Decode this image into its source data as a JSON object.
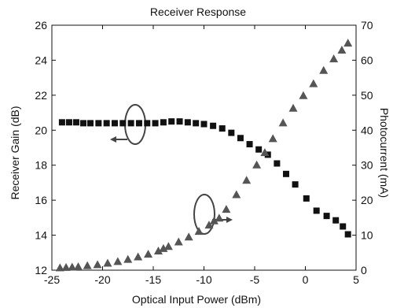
{
  "chart_data": {
    "type": "scatter",
    "title": "Receiver Response",
    "xlabel": "Optical Input Power (dBm)",
    "ylabel_left": "Receiver Gain (dB)",
    "ylabel_right": "Photocurrent (mA)",
    "xlim": [
      -25,
      5
    ],
    "ylim_left": [
      12,
      26
    ],
    "ylim_right": [
      0,
      70
    ],
    "x_ticks": [
      "-25",
      "-20",
      "-15",
      "-10",
      "-5",
      "0",
      "5"
    ],
    "y_left_ticks": [
      "12",
      "14",
      "16",
      "18",
      "20",
      "22",
      "24",
      "26"
    ],
    "y_right_ticks": [
      "0",
      "10",
      "20",
      "30",
      "40",
      "50",
      "60",
      "70"
    ],
    "grid": false,
    "colors": {
      "gain": "#111111",
      "photocurrent": "#555555",
      "annotation": "#444444"
    },
    "series": [
      {
        "axis": "left",
        "marker": "square",
        "x": [
          -24,
          -23.3,
          -22.6,
          -21.9,
          -21.2,
          -20.4,
          -19.6,
          -18.8,
          -18,
          -17.2,
          -16.4,
          -15.6,
          -14.8,
          -14,
          -13.2,
          -12.4,
          -11.6,
          -10.8,
          -10,
          -9.1,
          -8.2,
          -7.3,
          -6.4,
          -5.5,
          -4.6,
          -3.7,
          -2.8,
          -1.9,
          -1,
          0.1,
          1.1,
          2.1,
          3,
          3.7,
          4.2
        ],
        "values": [
          20.45,
          20.45,
          20.45,
          20.4,
          20.4,
          20.4,
          20.4,
          20.4,
          20.4,
          20.4,
          20.4,
          20.4,
          20.4,
          20.45,
          20.5,
          20.5,
          20.45,
          20.4,
          20.35,
          20.25,
          20.1,
          19.85,
          19.55,
          19.2,
          18.9,
          18.6,
          18.1,
          17.5,
          16.9,
          16.1,
          15.4,
          15.1,
          14.85,
          14.5,
          14.05
        ]
      },
      {
        "axis": "right",
        "marker": "triangle",
        "x": [
          -24.2,
          -23.6,
          -23,
          -22.4,
          -21.5,
          -20.5,
          -19.5,
          -18.5,
          -17.5,
          -16.5,
          -15.5,
          -14.5,
          -14,
          -13.5,
          -12.5,
          -11.5,
          -10.5,
          -9.5,
          -9,
          -8.5,
          -7.8,
          -6.8,
          -5.8,
          -4.8,
          -4,
          -3.2,
          -2.2,
          -1.2,
          -0.2,
          0.8,
          1.8,
          2.8,
          3.6,
          4.2
        ],
        "values": [
          0.6,
          0.7,
          0.8,
          0.9,
          1.2,
          1.5,
          1.9,
          2.4,
          3,
          3.7,
          4.5,
          5.4,
          6.1,
          6.7,
          8,
          9.4,
          11,
          12.8,
          14,
          14.8,
          17.3,
          21.5,
          25.6,
          30,
          33.5,
          37.5,
          42,
          46.2,
          49.8,
          53.2,
          57,
          60.3,
          62.8,
          64.8
        ]
      }
    ]
  }
}
